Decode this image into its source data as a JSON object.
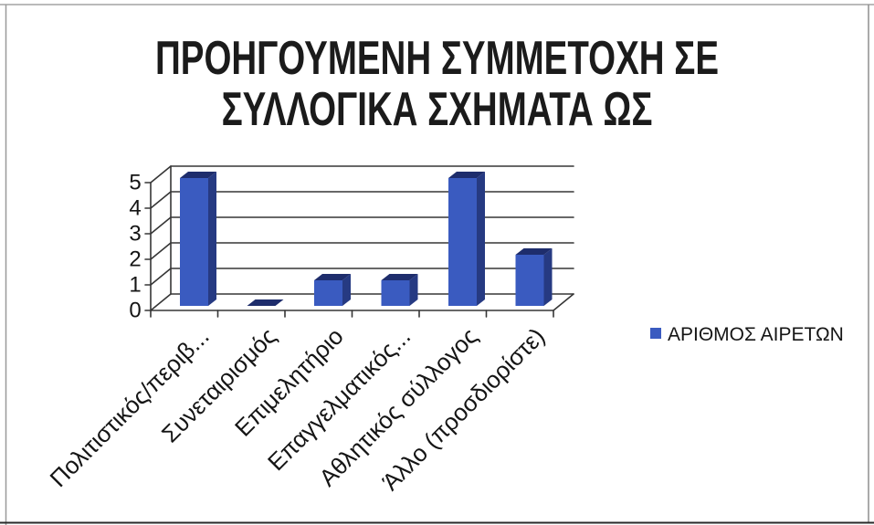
{
  "chart_data": {
    "type": "bar",
    "three_d": true,
    "title": "ΠΡΟΗΓΟΥΜΕΝΗ ΣΥΜΜΕΤΟΧΗ ΣΕ\nΣΥΛΛΟΓΙΚΑ ΣΧΗΜΑΤΑ ΩΣ",
    "categories": [
      "Πολιτιστικός/περιβ...",
      "Συνεταιρισμός",
      "Επιμελητήριο",
      "Επαγγελματικός...",
      "Αθλητικός σύλλογος",
      "Άλλο (προσδιορίστε)"
    ],
    "series": [
      {
        "name": "ΑΡΙΘΜΟΣ ΑΙΡΕΤΩΝ",
        "values": [
          5,
          0,
          1,
          1,
          5,
          2
        ]
      }
    ],
    "ylim": [
      0,
      5
    ],
    "yticks": [
      0,
      1,
      2,
      3,
      4,
      5
    ],
    "grid": true,
    "legend": "right"
  },
  "colors": {
    "bar_front": "#3a5bc0",
    "bar_side": "#263a82",
    "bar_top": "#1e2d6c",
    "gridline": "#363636",
    "text": "#151515"
  }
}
